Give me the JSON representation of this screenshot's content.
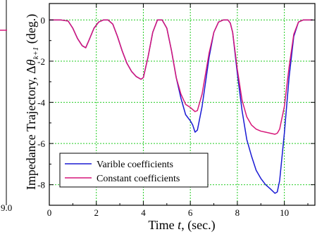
{
  "chart_data": {
    "type": "line",
    "title": "",
    "ylabel_parts": {
      "prefix": "Impedance Trajectory, Δ",
      "theta": "θ",
      "subscript": "k+1",
      "suffix": " (deg.)"
    },
    "xlabel_parts": {
      "prefix": "Time ",
      "var": "t",
      "suffix": ", (sec.)"
    },
    "xlim": [
      0,
      11.3
    ],
    "ylim": [
      -9,
      0.8
    ],
    "xticks": [
      0,
      2,
      4,
      6,
      8,
      10
    ],
    "yticks": [
      0,
      -2,
      -4,
      -6,
      -8
    ],
    "grid": true,
    "left_partial_tick": "9.0",
    "legend_position": "bottom-left",
    "series": [
      {
        "name": "Varible coefficients",
        "color": "#1a1ad4",
        "x": [
          0,
          0.5,
          0.8,
          1.0,
          1.2,
          1.4,
          1.55,
          1.7,
          1.9,
          2.1,
          2.3,
          2.5,
          2.7,
          2.9,
          3.1,
          3.3,
          3.5,
          3.7,
          3.9,
          4.0,
          4.2,
          4.4,
          4.6,
          4.8,
          5.0,
          5.2,
          5.4,
          5.6,
          5.8,
          6.0,
          6.1,
          6.2,
          6.3,
          6.5,
          6.8,
          7.0,
          7.2,
          7.4,
          7.6,
          7.7,
          7.8,
          8.0,
          8.2,
          8.4,
          8.6,
          8.8,
          9.0,
          9.2,
          9.4,
          9.6,
          9.7,
          9.8,
          10.0,
          10.2,
          10.4,
          10.6,
          10.8,
          11.2
        ],
        "y": [
          0,
          0,
          -0.05,
          -0.4,
          -0.9,
          -1.25,
          -1.35,
          -0.95,
          -0.4,
          -0.1,
          0,
          0,
          -0.2,
          -0.8,
          -1.5,
          -2.1,
          -2.5,
          -2.75,
          -2.88,
          -2.8,
          -1.8,
          -0.6,
          0,
          0,
          -0.4,
          -1.5,
          -2.8,
          -3.8,
          -4.6,
          -4.9,
          -5.1,
          -5.45,
          -5.35,
          -4.2,
          -1.8,
          -0.6,
          -0.1,
          0,
          0,
          -0.15,
          -0.6,
          -2.6,
          -4.4,
          -5.8,
          -6.6,
          -7.3,
          -7.7,
          -8.0,
          -8.2,
          -8.42,
          -8.35,
          -7.8,
          -5.5,
          -2.8,
          -0.8,
          -0.1,
          0,
          0
        ]
      },
      {
        "name": "Constant coefficients",
        "color": "#d6177a",
        "x": [
          0,
          0.5,
          0.8,
          1.0,
          1.2,
          1.4,
          1.55,
          1.7,
          1.9,
          2.1,
          2.3,
          2.5,
          2.7,
          2.9,
          3.1,
          3.3,
          3.5,
          3.7,
          3.9,
          4.0,
          4.2,
          4.4,
          4.6,
          4.8,
          5.0,
          5.2,
          5.4,
          5.6,
          5.8,
          6.0,
          6.1,
          6.2,
          6.3,
          6.5,
          6.8,
          7.0,
          7.2,
          7.4,
          7.6,
          7.7,
          7.8,
          8.0,
          8.2,
          8.4,
          8.6,
          8.8,
          9.0,
          9.2,
          9.4,
          9.6,
          9.7,
          9.8,
          10.0,
          10.2,
          10.4,
          10.6,
          10.8,
          11.2
        ],
        "y": [
          0,
          0,
          -0.05,
          -0.4,
          -0.9,
          -1.25,
          -1.35,
          -0.95,
          -0.4,
          -0.1,
          0,
          0,
          -0.2,
          -0.8,
          -1.5,
          -2.1,
          -2.5,
          -2.75,
          -2.88,
          -2.8,
          -1.8,
          -0.6,
          0,
          0,
          -0.4,
          -1.5,
          -2.8,
          -3.6,
          -4.1,
          -4.25,
          -4.35,
          -4.45,
          -4.4,
          -3.6,
          -1.6,
          -0.6,
          -0.1,
          0,
          0,
          -0.15,
          -0.6,
          -2.4,
          -3.9,
          -4.7,
          -5.1,
          -5.3,
          -5.4,
          -5.45,
          -5.5,
          -5.55,
          -5.5,
          -5.3,
          -4.2,
          -2.3,
          -0.7,
          -0.1,
          0,
          0
        ]
      }
    ]
  }
}
